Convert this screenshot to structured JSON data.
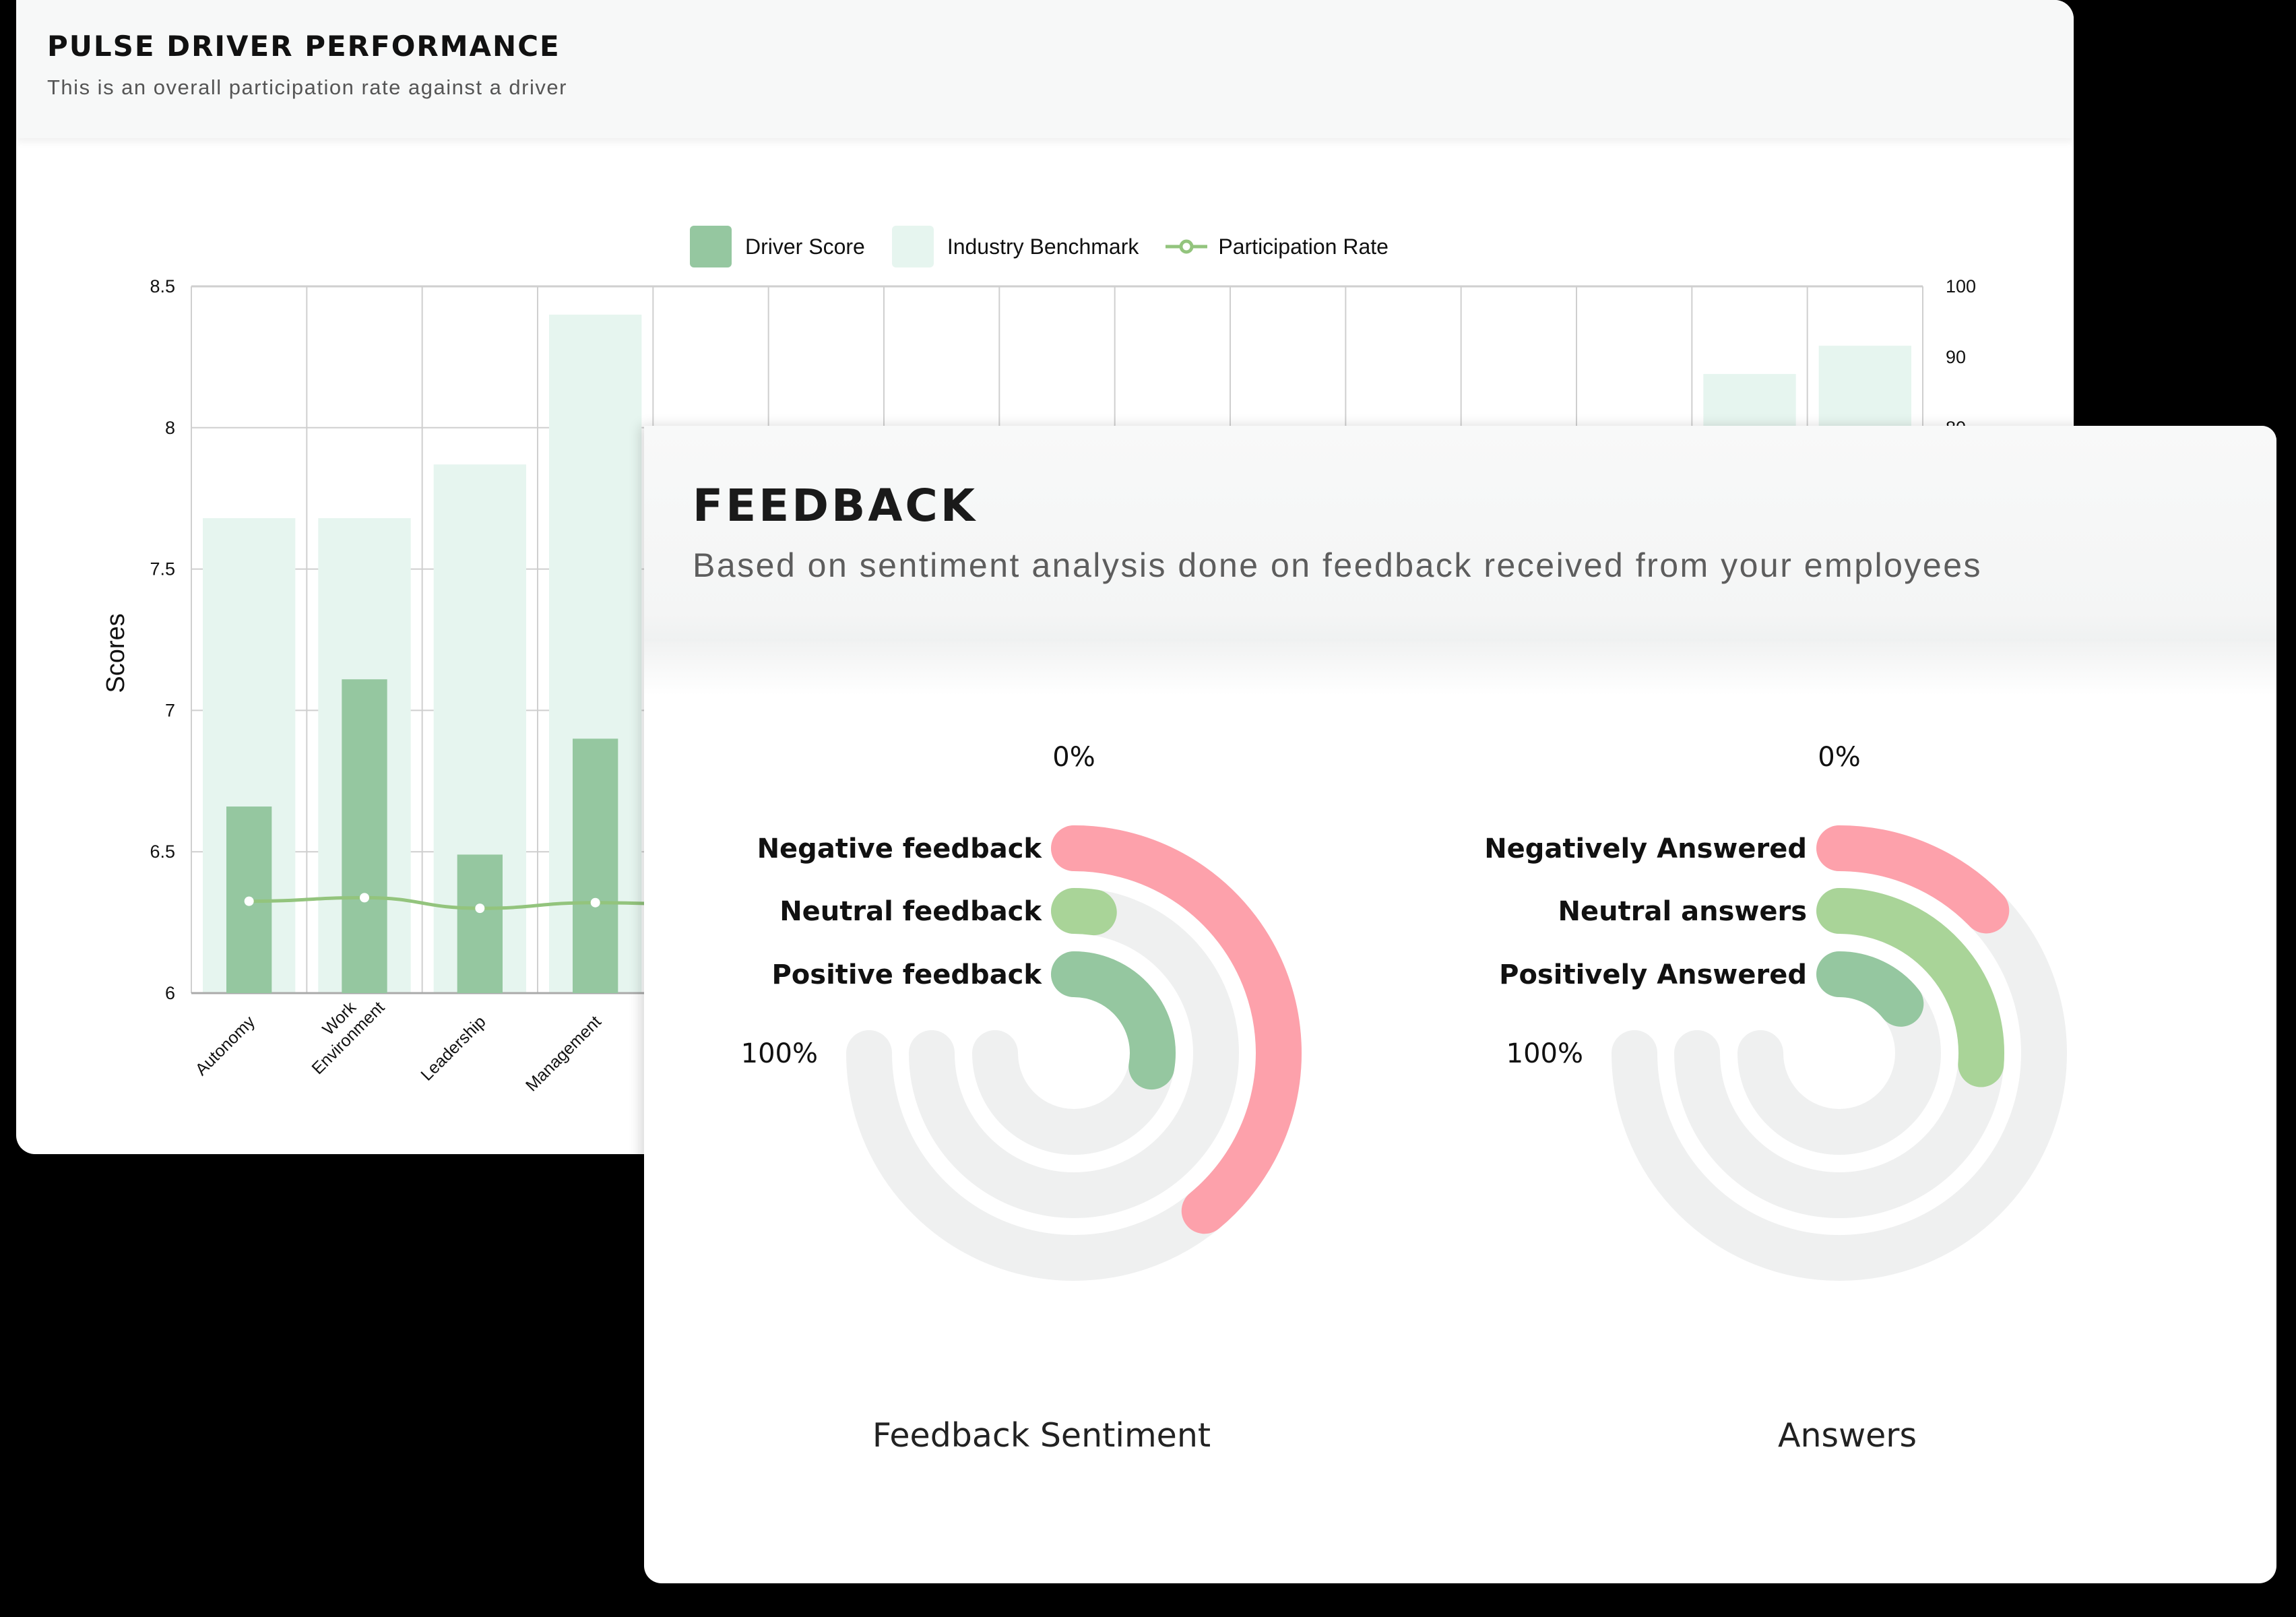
{
  "pulse_card": {
    "title": "PULSE DRIVER PERFORMANCE",
    "subtitle": "This is an overall participation rate against a driver"
  },
  "feedback_card": {
    "title": "FEEDBACK",
    "subtitle": "Based on sentiment analysis done on feedback received from your employees"
  },
  "colors": {
    "driver_score": "#95c7a0",
    "industry_benchmark": "#e6f5ef",
    "participation_rate": "#93c47d",
    "negative": "#fda1ab",
    "neutral": "#a9d498",
    "positive": "#95c7a0",
    "track": "#eff0f0",
    "grid": "#cfcfcf"
  },
  "chart_data": [
    {
      "type": "bar",
      "title": "Pulse Driver Performance",
      "legend": [
        "Driver Score",
        "Industry Benchmark",
        "Participation Rate"
      ],
      "legend_position": "top",
      "ylabel": "Scores",
      "ylim": [
        6,
        8.5
      ],
      "yticks": [
        "6",
        "6.5",
        "7",
        "7.5",
        "8",
        "8.5"
      ],
      "y2lim": [
        0,
        100
      ],
      "y2ticks": [
        "100",
        "90",
        "80"
      ],
      "grid": true,
      "categories": [
        "Autonomy",
        "Work Environment",
        "Leadership",
        "Management",
        "",
        "",
        "",
        "",
        "",
        "",
        "",
        "",
        "",
        "",
        ""
      ],
      "category_lines": [
        [
          "Autonomy"
        ],
        [
          "Work",
          "Environment"
        ],
        [
          "Leadership"
        ],
        [
          "Management"
        ],
        [],
        [],
        [],
        [],
        [],
        [],
        [],
        [],
        [],
        [],
        []
      ],
      "series": [
        {
          "name": "Industry Benchmark",
          "type": "bar",
          "axis": "left",
          "values": [
            7.68,
            7.68,
            7.87,
            8.4,
            null,
            null,
            null,
            null,
            null,
            null,
            null,
            null,
            null,
            8.19,
            8.29
          ]
        },
        {
          "name": "Driver Score",
          "type": "bar",
          "axis": "left",
          "values": [
            6.66,
            7.11,
            6.49,
            6.9,
            null,
            null,
            null,
            null,
            null,
            null,
            null,
            null,
            null,
            null,
            null
          ]
        },
        {
          "name": "Participation Rate",
          "type": "line",
          "axis": "right",
          "values": [
            13,
            13.5,
            12,
            12.8,
            12.5,
            null,
            null,
            null,
            null,
            null,
            null,
            null,
            null,
            null,
            null
          ]
        }
      ]
    },
    {
      "type": "radial-bar",
      "title": "Feedback Sentiment",
      "scale_start_label": "0%",
      "scale_end_label": "100%",
      "sweep_degrees": 270,
      "categories": [
        "Negative feedback",
        "Neutral feedback",
        "Positive feedback"
      ],
      "values": [
        52,
        3,
        37
      ]
    },
    {
      "type": "radial-bar",
      "title": "Answers",
      "scale_start_label": "0%",
      "scale_end_label": "100%",
      "sweep_degrees": 270,
      "categories": [
        "Negatively Answered",
        "Neutral answers",
        "Positively Answered"
      ],
      "values": [
        17,
        35,
        19
      ]
    }
  ]
}
